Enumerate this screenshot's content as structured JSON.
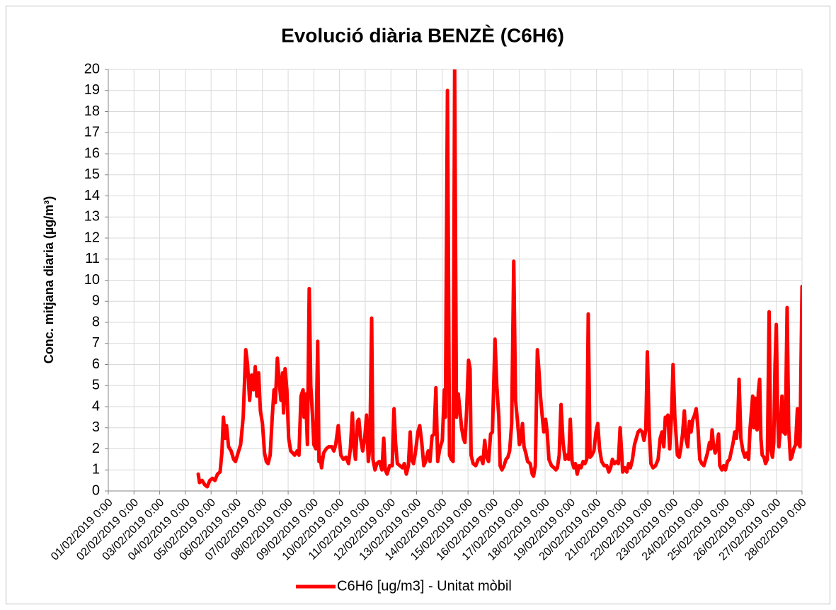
{
  "chart_data": {
    "type": "line",
    "title": "Evolució diària BENZÈ (C6H6)",
    "y_label": "Conc. mitjana diaria (µg/m³)",
    "xlim": [
      0,
      27
    ],
    "xticks": [
      {
        "value": 0,
        "label": "01/02/2019 0:00"
      },
      {
        "value": 1,
        "label": "02/02/2019 0:00"
      },
      {
        "value": 2,
        "label": "03/02/2019 0:00"
      },
      {
        "value": 3,
        "label": "04/02/2019 0:00"
      },
      {
        "value": 4,
        "label": "05/02/2019 0:00"
      },
      {
        "value": 5,
        "label": "06/02/2019 0:00"
      },
      {
        "value": 6,
        "label": "07/02/2019 0:00"
      },
      {
        "value": 7,
        "label": "08/02/2019 0:00"
      },
      {
        "value": 8,
        "label": "09/02/2019 0:00"
      },
      {
        "value": 9,
        "label": "10/02/2019 0:00"
      },
      {
        "value": 10,
        "label": "11/02/2019 0:00"
      },
      {
        "value": 11,
        "label": "12/02/2019 0:00"
      },
      {
        "value": 12,
        "label": "13/02/2019 0:00"
      },
      {
        "value": 13,
        "label": "14/02/2019 0:00"
      },
      {
        "value": 14,
        "label": "15/02/2019 0:00"
      },
      {
        "value": 15,
        "label": "16/02/2019 0:00"
      },
      {
        "value": 16,
        "label": "17/02/2019 0:00"
      },
      {
        "value": 17,
        "label": "18/02/2019 0:00"
      },
      {
        "value": 18,
        "label": "19/02/2019 0:00"
      },
      {
        "value": 19,
        "label": "20/02/2019 0:00"
      },
      {
        "value": 20,
        "label": "21/02/2019 0:00"
      },
      {
        "value": 21,
        "label": "22/02/2019 0:00"
      },
      {
        "value": 22,
        "label": "23/02/2019 0:00"
      },
      {
        "value": 23,
        "label": "24/02/2019 0:00"
      },
      {
        "value": 24,
        "label": "25/02/2019 0:00"
      },
      {
        "value": 25,
        "label": "26/02/2019 0:00"
      },
      {
        "value": 26,
        "label": "27/02/2019 0:00"
      },
      {
        "value": 27,
        "label": "28/02/2019 0:00"
      }
    ],
    "ylim": [
      0,
      20
    ],
    "yticks": [
      0,
      1,
      2,
      3,
      4,
      5,
      6,
      7,
      8,
      9,
      10,
      11,
      12,
      13,
      14,
      15,
      16,
      17,
      18,
      19,
      20
    ],
    "grid": true,
    "legend": "bottom",
    "x": [
      3.5,
      3.55,
      3.65,
      3.75,
      3.85,
      3.95,
      4.05,
      4.15,
      4.25,
      4.35,
      4.42,
      4.48,
      4.55,
      4.6,
      4.68,
      4.78,
      4.88,
      4.95,
      5.05,
      5.15,
      5.25,
      5.35,
      5.42,
      5.5,
      5.58,
      5.65,
      5.72,
      5.78,
      5.85,
      5.92,
      6,
      6.08,
      6.15,
      6.22,
      6.3,
      6.38,
      6.45,
      6.5,
      6.58,
      6.65,
      6.72,
      6.78,
      6.82,
      6.88,
      6.95,
      7.02,
      7.1,
      7.18,
      7.25,
      7.35,
      7.42,
      7.5,
      7.58,
      7.62,
      7.68,
      7.75,
      7.82,
      7.88,
      7.95,
      8,
      8.08,
      8.15,
      8.2,
      8.25,
      8.3,
      8.38,
      8.48,
      8.58,
      8.7,
      8.78,
      8.85,
      8.95,
      9.05,
      9.15,
      9.25,
      9.35,
      9.42,
      9.5,
      9.55,
      9.62,
      9.7,
      9.75,
      9.82,
      9.9,
      9.98,
      10.05,
      10.12,
      10.18,
      10.25,
      10.3,
      10.38,
      10.45,
      10.55,
      10.65,
      10.72,
      10.78,
      10.85,
      10.95,
      11.05,
      11.12,
      11.18,
      11.25,
      11.35,
      11.45,
      11.52,
      11.6,
      11.68,
      11.75,
      11.8,
      11.88,
      11.95,
      12.05,
      12.12,
      12.2,
      12.28,
      12.35,
      12.45,
      12.52,
      12.6,
      12.68,
      12.75,
      12.82,
      12.9,
      13,
      13.08,
      13.12,
      13.2,
      13.28,
      13.35,
      13.42,
      13.48,
      13.55,
      13.62,
      13.68,
      13.75,
      13.82,
      13.88,
      13.95,
      14.02,
      14.08,
      14.12,
      14.2,
      14.3,
      14.4,
      14.5,
      14.58,
      14.65,
      14.72,
      14.8,
      14.88,
      14.95,
      15.05,
      15.12,
      15.2,
      15.25,
      15.32,
      15.4,
      15.48,
      15.55,
      15.62,
      15.7,
      15.78,
      15.85,
      15.92,
      16,
      16.05,
      16.12,
      16.18,
      16.25,
      16.32,
      16.42,
      16.5,
      16.55,
      16.62,
      16.7,
      16.75,
      16.82,
      16.9,
      16.95,
      17.02,
      17.08,
      17.15,
      17.25,
      17.35,
      17.42,
      17.48,
      17.55,
      17.62,
      17.7,
      17.78,
      17.85,
      17.92,
      17.98,
      18.05,
      18.12,
      18.18,
      18.25,
      18.32,
      18.4,
      18.48,
      18.55,
      18.62,
      18.68,
      18.75,
      18.82,
      18.9,
      18.98,
      19.05,
      19.12,
      19.2,
      19.3,
      19.4,
      19.48,
      19.55,
      19.62,
      19.7,
      19.78,
      19.85,
      19.92,
      19.98,
      20.02,
      20.1,
      20.18,
      20.25,
      20.32,
      20.4,
      20.48,
      20.55,
      20.62,
      20.7,
      20.78,
      20.85,
      20.92,
      20.98,
      21.05,
      21.12,
      21.2,
      21.3,
      21.4,
      21.48,
      21.55,
      21.62,
      21.68,
      21.72,
      21.78,
      21.85,
      21.92,
      21.98,
      22.05,
      22.1,
      22.15,
      22.22,
      22.28,
      22.35,
      22.42,
      22.48,
      22.55,
      22.62,
      22.68,
      22.75,
      22.82,
      22.88,
      22.95,
      23.02,
      23.1,
      23.18,
      23.25,
      23.32,
      23.4,
      23.45,
      23.5,
      23.55,
      23.62,
      23.68,
      23.75,
      23.8,
      23.88,
      23.95,
      24.02,
      24.1,
      24.18,
      24.25,
      24.32,
      24.38,
      24.45,
      24.5,
      24.55,
      24.62,
      24.7,
      24.78,
      24.85,
      24.92,
      24.98,
      25.02,
      25.08,
      25.12,
      25.18,
      25.25,
      25.3,
      25.35,
      25.4,
      25.45,
      25.52,
      25.58,
      25.65,
      25.72,
      25.78,
      25.85,
      25.9,
      25.95,
      26,
      26.05,
      26.1,
      26.15,
      26.22,
      26.28,
      26.35,
      26.42,
      26.48,
      26.55,
      26.6,
      26.68,
      26.75,
      26.82,
      26.88,
      26.92,
      27
    ],
    "series": [
      {
        "name": "C6H6 [ug/m3] - Unitat mòbil",
        "color": "#ff0000",
        "values": [
          0.8,
          0.4,
          0.5,
          0.3,
          0.2,
          0.5,
          0.6,
          0.5,
          0.8,
          0.9,
          1.8,
          3.5,
          2.5,
          3.1,
          2.1,
          1.9,
          1.5,
          1.4,
          1.8,
          2.2,
          3.5,
          6.7,
          6.0,
          4.3,
          5.5,
          4.8,
          5.9,
          4.5,
          5.6,
          3.8,
          3.2,
          1.8,
          1.4,
          1.3,
          1.7,
          3.5,
          4.8,
          4.2,
          6.3,
          5.2,
          4.3,
          5.6,
          3.7,
          5.8,
          4.8,
          2.5,
          1.9,
          1.8,
          1.7,
          1.9,
          1.7,
          4.5,
          4.8,
          3.5,
          4.6,
          2.2,
          9.6,
          5.0,
          3.5,
          2.2,
          2.0,
          7.1,
          1.4,
          1.6,
          1.1,
          1.8,
          2.0,
          2.1,
          2.1,
          1.9,
          2.2,
          3.1,
          1.7,
          1.5,
          1.6,
          1.3,
          2.0,
          3.7,
          2.2,
          1.5,
          3.3,
          3.4,
          2.5,
          1.9,
          2.5,
          3.6,
          1.4,
          2.1,
          8.2,
          1.5,
          1.0,
          1.3,
          1.4,
          1.0,
          2.5,
          1.0,
          0.8,
          1.2,
          1.2,
          3.9,
          2.3,
          1.3,
          1.2,
          1.1,
          1.3,
          0.8,
          1.2,
          2.8,
          1.5,
          1.3,
          1.8,
          2.8,
          3.1,
          2.3,
          1.2,
          1.4,
          1.9,
          1.4,
          2.6,
          2.7,
          4.9,
          1.4,
          2.0,
          2.4,
          4.8,
          3.5,
          19.0,
          1.7,
          1.5,
          1.4,
          20,
          3.5,
          4.6,
          3.9,
          3.0,
          2.5,
          2.3,
          3.9,
          6.2,
          5.8,
          1.7,
          1.3,
          1.2,
          1.5,
          1.6,
          1.3,
          2.4,
          1.6,
          1.4,
          2.7,
          2.8,
          7.2,
          5.0,
          3.5,
          1.2,
          1.0,
          1.2,
          1.5,
          1.6,
          1.9,
          3.2,
          10.9,
          4.3,
          3.4,
          2.2,
          2.4,
          3.2,
          2.1,
          1.8,
          1.4,
          1.3,
          0.8,
          0.7,
          1.2,
          6.7,
          5.9,
          4.5,
          3.4,
          2.8,
          3.4,
          2.8,
          1.5,
          1.2,
          1.1,
          1.0,
          1.1,
          1.7,
          4.1,
          2.3,
          1.5,
          1.7,
          1.5,
          3.4,
          1.4,
          1.1,
          1.3,
          0.8,
          1.2,
          1.1,
          1.4,
          1.3,
          1.5,
          8.4,
          1.6,
          1.7,
          1.9,
          2.8,
          3.2,
          2.0,
          1.4,
          1.2,
          1.2,
          0.9,
          1.1,
          1.5,
          1.3,
          1.4,
          1.3,
          3.0,
          1.8,
          0.9,
          1.1,
          0.9,
          1.3,
          1.1,
          1.5,
          2.2,
          2.5,
          2.8,
          2.9,
          2.8,
          2.4,
          2.9,
          6.6,
          3.0,
          1.3,
          1.1,
          1.2,
          1.5,
          2.5,
          2.8,
          2.1,
          3.5,
          3.2,
          3.6,
          2.0,
          3.5,
          6.0,
          3.5,
          2.6,
          1.7,
          1.6,
          2.0,
          2.7,
          3.8,
          2.5,
          2.1,
          3.3,
          2.8,
          3.4,
          3.6,
          3.9,
          3.0,
          1.5,
          1.3,
          1.2,
          1.5,
          1.8,
          2.3,
          2.0,
          2.9,
          2.2,
          1.8,
          2.1,
          2.7,
          1.2,
          1.0,
          1.2,
          1.0,
          1.4,
          1.5,
          1.9,
          2.3,
          2.8,
          2.5,
          3.3,
          5.3,
          2.5,
          1.9,
          1.6,
          1.8,
          1.5,
          3.0,
          3.6,
          4.5,
          3.0,
          4.4,
          2.9,
          4.7,
          5.3,
          2.5,
          1.7,
          1.6,
          1.3,
          1.5,
          8.5,
          2.0,
          1.6,
          2.3,
          6.0,
          7.9,
          3.5,
          2.1,
          2.8,
          4.5,
          2.8,
          2.7,
          8.7,
          3.0,
          1.5,
          1.6,
          2.0,
          2.2,
          3.9,
          2.2,
          2.1,
          9.7
        ]
      }
    ]
  }
}
